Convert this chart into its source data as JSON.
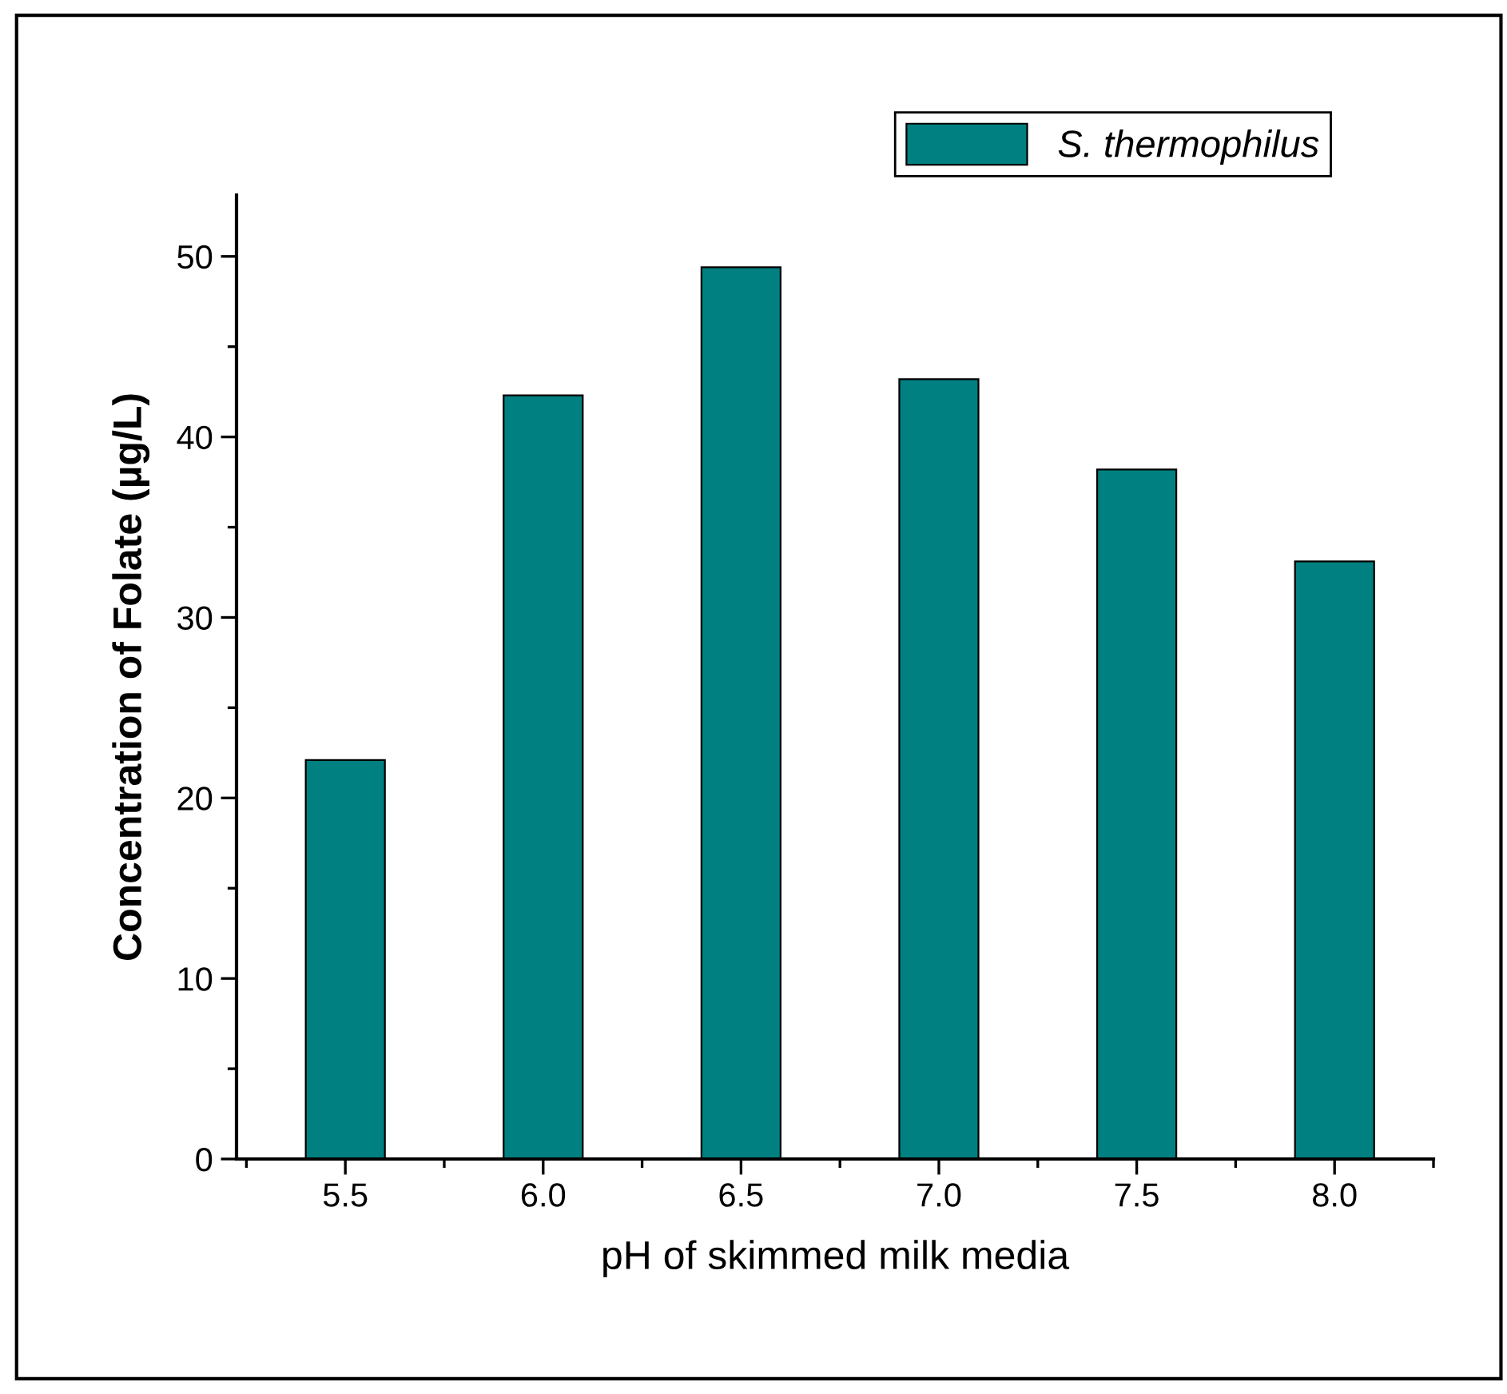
{
  "chart_data": {
    "type": "bar",
    "xlabel": "pH of skimmed milk media",
    "ylabel": "Concentration of Folate (µg/L)",
    "categories": [
      "5.5",
      "6.0",
      "6.5",
      "7.0",
      "7.5",
      "8.0"
    ],
    "series": [
      {
        "name": "S. thermophilus",
        "color": "#008080",
        "values": [
          22.1,
          42.3,
          49.4,
          43.2,
          38.2,
          33.1
        ]
      }
    ],
    "ylim": [
      0,
      53.4
    ],
    "yticks": [
      0,
      10,
      20,
      30,
      40,
      50
    ],
    "grid": false,
    "legend": "top right"
  }
}
